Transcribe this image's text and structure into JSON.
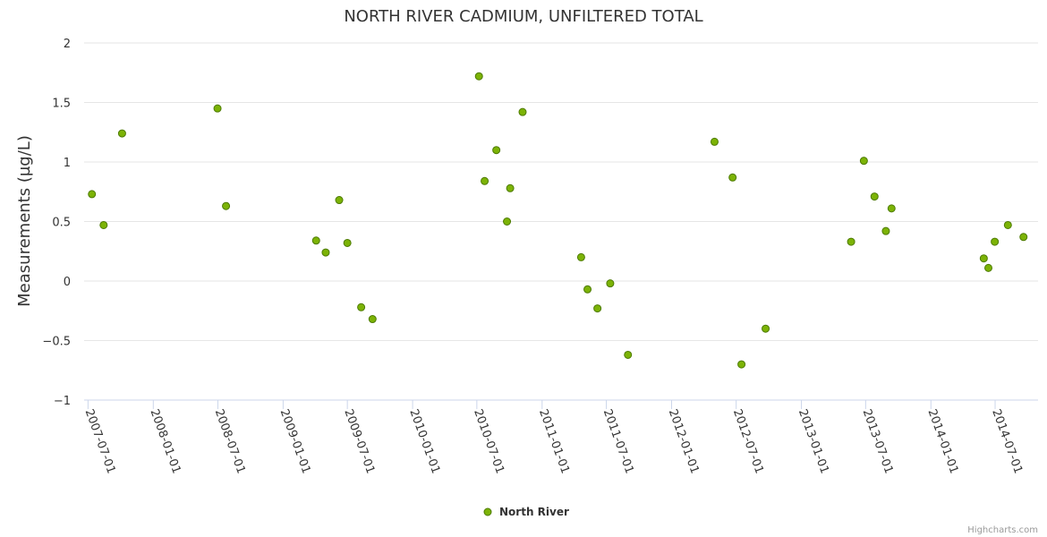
{
  "chart_data": {
    "type": "scatter",
    "title": "NORTH RIVER CADMIUM, UNFILTERED TOTAL",
    "ylabel": "Measurements (µg/L)",
    "xlabel": "",
    "ylim": [
      -1,
      2
    ],
    "yticks": [
      {
        "value": 2,
        "label": "2"
      },
      {
        "value": 1.5,
        "label": "1.5"
      },
      {
        "value": 1,
        "label": "1"
      },
      {
        "value": 0.5,
        "label": "0.5"
      },
      {
        "value": 0,
        "label": "0"
      },
      {
        "value": -0.5,
        "label": "−0.5"
      },
      {
        "value": -1,
        "label": "−1"
      }
    ],
    "xlim": [
      "2007-06-20",
      "2014-10-30"
    ],
    "xticks": [
      "2007-07-01",
      "2008-01-01",
      "2008-07-01",
      "2009-01-01",
      "2009-07-01",
      "2010-01-01",
      "2010-07-01",
      "2011-01-01",
      "2011-07-01",
      "2012-01-01",
      "2012-07-01",
      "2013-01-01",
      "2013-07-01",
      "2014-01-01",
      "2014-07-01"
    ],
    "series": [
      {
        "name": "North River",
        "color": "#7cb306",
        "points": [
          {
            "x": "2007-07-12",
            "y": 0.73
          },
          {
            "x": "2007-08-14",
            "y": 0.47
          },
          {
            "x": "2007-10-05",
            "y": 1.24
          },
          {
            "x": "2008-06-30",
            "y": 1.45
          },
          {
            "x": "2008-07-24",
            "y": 0.63
          },
          {
            "x": "2009-04-04",
            "y": 0.34
          },
          {
            "x": "2009-05-01",
            "y": 0.24
          },
          {
            "x": "2009-06-08",
            "y": 0.68
          },
          {
            "x": "2009-07-01",
            "y": 0.32
          },
          {
            "x": "2009-08-09",
            "y": -0.22
          },
          {
            "x": "2009-09-10",
            "y": -0.32
          },
          {
            "x": "2010-07-07",
            "y": 1.72
          },
          {
            "x": "2010-07-23",
            "y": 0.84
          },
          {
            "x": "2010-08-25",
            "y": 1.1
          },
          {
            "x": "2010-09-24",
            "y": 0.5
          },
          {
            "x": "2010-10-03",
            "y": 0.78
          },
          {
            "x": "2010-11-07",
            "y": 1.42
          },
          {
            "x": "2011-04-21",
            "y": 0.2
          },
          {
            "x": "2011-05-09",
            "y": -0.07
          },
          {
            "x": "2011-06-06",
            "y": -0.23
          },
          {
            "x": "2011-07-12",
            "y": -0.02
          },
          {
            "x": "2011-08-31",
            "y": -0.62
          },
          {
            "x": "2012-05-01",
            "y": 1.17
          },
          {
            "x": "2012-06-21",
            "y": 0.87
          },
          {
            "x": "2012-07-16",
            "y": -0.7
          },
          {
            "x": "2012-09-22",
            "y": -0.4
          },
          {
            "x": "2013-05-21",
            "y": 0.33
          },
          {
            "x": "2013-06-26",
            "y": 1.01
          },
          {
            "x": "2013-07-26",
            "y": 0.71
          },
          {
            "x": "2013-08-27",
            "y": 0.42
          },
          {
            "x": "2013-09-12",
            "y": 0.61
          },
          {
            "x": "2014-05-30",
            "y": 0.19
          },
          {
            "x": "2014-06-12",
            "y": 0.11
          },
          {
            "x": "2014-06-30",
            "y": 0.33
          },
          {
            "x": "2014-08-06",
            "y": 0.47
          },
          {
            "x": "2014-09-19",
            "y": 0.37
          }
        ]
      }
    ],
    "legend": {
      "position": "bottom-center",
      "entries": [
        "North River"
      ]
    },
    "grid": true
  },
  "credits": "Highcharts.com"
}
